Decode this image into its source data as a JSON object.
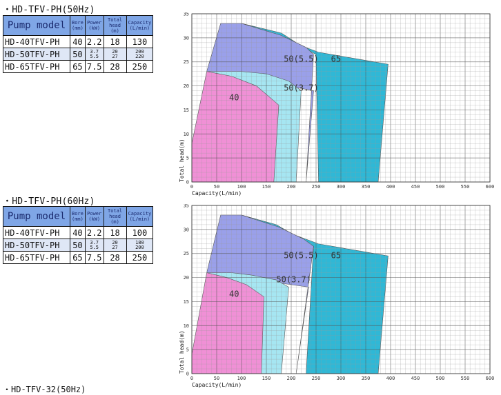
{
  "sections": [
    {
      "title": "・HD-TFV-PH(50Hz)",
      "table": {
        "headers": [
          "Pump model",
          "Bore",
          "Power",
          "Total head",
          "Capacity"
        ],
        "units": [
          "",
          "(mm)",
          "(kW)",
          "(m)",
          "(L/min)"
        ],
        "rows": [
          {
            "model": "HD-40TFV-PH",
            "bore": "40",
            "power": [
              "2.2"
            ],
            "head": [
              "18"
            ],
            "capacity": [
              "130"
            ]
          },
          {
            "model": "HD-50TFV-PH",
            "bore": "50",
            "power": [
              "3.7",
              "5.5"
            ],
            "head": [
              "20",
              "27"
            ],
            "capacity": [
              "200",
              "220"
            ]
          },
          {
            "model": "HD-65TFV-PH",
            "bore": "65",
            "power": [
              "7.5"
            ],
            "head": [
              "28"
            ],
            "capacity": [
              "250"
            ]
          }
        ]
      }
    },
    {
      "title": "・HD-TFV-PH(60Hz)",
      "table": {
        "headers": [
          "Pump model",
          "Bore",
          "Power",
          "Total head",
          "Capacity"
        ],
        "units": [
          "",
          "(mm)",
          "(kW)",
          "(m)",
          "(L/min)"
        ],
        "rows": [
          {
            "model": "HD-40TFV-PH",
            "bore": "40",
            "power": [
              "2.2"
            ],
            "head": [
              "18"
            ],
            "capacity": [
              "100"
            ]
          },
          {
            "model": "HD-50TFV-PH",
            "bore": "50",
            "power": [
              "3.7",
              "5.5"
            ],
            "head": [
              "20",
              "27"
            ],
            "capacity": [
              "180",
              "200"
            ]
          },
          {
            "model": "HD-65TFV-PH",
            "bore": "65",
            "power": [
              "7.5"
            ],
            "head": [
              "28"
            ],
            "capacity": [
              "250"
            ]
          }
        ]
      }
    }
  ],
  "cut_title": "・HD-TFV-32(50Hz)",
  "chart_data": [
    {
      "type": "area",
      "xlabel": "Capacity(L/min)",
      "ylabel": "Total head(m)",
      "xlim": [
        0,
        600
      ],
      "ylim": [
        0,
        35
      ],
      "xticks": [
        0,
        50,
        100,
        150,
        200,
        250,
        300,
        350,
        400,
        450,
        500,
        550,
        600
      ],
      "yticks": [
        0,
        5,
        10,
        15,
        20,
        25,
        30,
        35
      ],
      "grid": true,
      "series": [
        {
          "name": "65",
          "color": "#2fb8d6",
          "polygon": [
            [
              255,
              0
            ],
            [
              250,
              26.5
            ],
            [
              225,
              28
            ],
            [
              180,
              31
            ],
            [
              100,
              33
            ],
            [
              255,
              27
            ],
            [
              395,
              24.5
            ],
            [
              375,
              0
            ]
          ]
        },
        {
          "name": "50(5.5)",
          "color": "#9aa0ea",
          "polygon": [
            [
              230,
              0
            ],
            [
              245,
              26.5
            ],
            [
              230,
              28
            ],
            [
              180,
              30.5
            ],
            [
              100,
              33
            ],
            [
              58,
              33
            ],
            [
              30,
              23
            ],
            [
              245,
              19
            ]
          ]
        },
        {
          "name": "50(3.7)",
          "color": "#a6e6f2",
          "polygon": [
            [
              210,
              0
            ],
            [
              220,
              19
            ],
            [
              195,
              21
            ],
            [
              150,
              22.5
            ],
            [
              100,
              23
            ],
            [
              30,
              23
            ],
            [
              30,
              0
            ]
          ]
        },
        {
          "name": "40",
          "color": "#f090d6",
          "polygon": [
            [
              0,
              0
            ],
            [
              0,
              8
            ],
            [
              30,
              23
            ],
            [
              80,
              22
            ],
            [
              130,
              20
            ],
            [
              175,
              16
            ],
            [
              165,
              0
            ]
          ]
        }
      ],
      "labels": [
        {
          "text": "50(5.5)",
          "x": 185,
          "y": 25
        },
        {
          "text": "65",
          "x": 280,
          "y": 25
        },
        {
          "text": "50(3.7)",
          "x": 185,
          "y": 19
        },
        {
          "text": "40",
          "x": 75,
          "y": 17
        }
      ]
    },
    {
      "type": "area",
      "xlabel": "Capacity(L/min)",
      "ylabel": "Total head(m)",
      "xlim": [
        0,
        600
      ],
      "ylim": [
        0,
        35
      ],
      "xticks": [
        0,
        50,
        100,
        150,
        200,
        250,
        300,
        350,
        400,
        450,
        500,
        550,
        600
      ],
      "yticks": [
        0,
        5,
        10,
        15,
        20,
        25,
        30,
        35
      ],
      "grid": true,
      "series": [
        {
          "name": "65",
          "color": "#2fb8d6",
          "polygon": [
            [
              230,
              0
            ],
            [
              245,
              26.5
            ],
            [
              220,
              28
            ],
            [
              170,
              31
            ],
            [
              100,
              33
            ],
            [
              255,
              27
            ],
            [
              395,
              24.5
            ],
            [
              375,
              0
            ]
          ]
        },
        {
          "name": "50(5.5)",
          "color": "#9aa0ea",
          "polygon": [
            [
              210,
              0
            ],
            [
              245,
              26.5
            ],
            [
              225,
              28
            ],
            [
              175,
              30.5
            ],
            [
              100,
              33
            ],
            [
              58,
              33
            ],
            [
              30,
              21
            ],
            [
              235,
              18
            ]
          ]
        },
        {
          "name": "50(3.7)",
          "color": "#a6e6f2",
          "polygon": [
            [
              180,
              0
            ],
            [
              195,
              18
            ],
            [
              170,
              19.5
            ],
            [
              120,
              20.5
            ],
            [
              80,
              21
            ],
            [
              30,
              21
            ],
            [
              30,
              0
            ]
          ]
        },
        {
          "name": "40",
          "color": "#f090d6",
          "polygon": [
            [
              0,
              0
            ],
            [
              0,
              4
            ],
            [
              30,
              21
            ],
            [
              70,
              20
            ],
            [
              110,
              18.5
            ],
            [
              145,
              16
            ],
            [
              140,
              0
            ]
          ]
        }
      ],
      "labels": [
        {
          "text": "50(5.5)",
          "x": 185,
          "y": 24
        },
        {
          "text": "65",
          "x": 280,
          "y": 24
        },
        {
          "text": "50(3.7)",
          "x": 170,
          "y": 19
        },
        {
          "text": "40",
          "x": 75,
          "y": 16
        }
      ]
    }
  ]
}
